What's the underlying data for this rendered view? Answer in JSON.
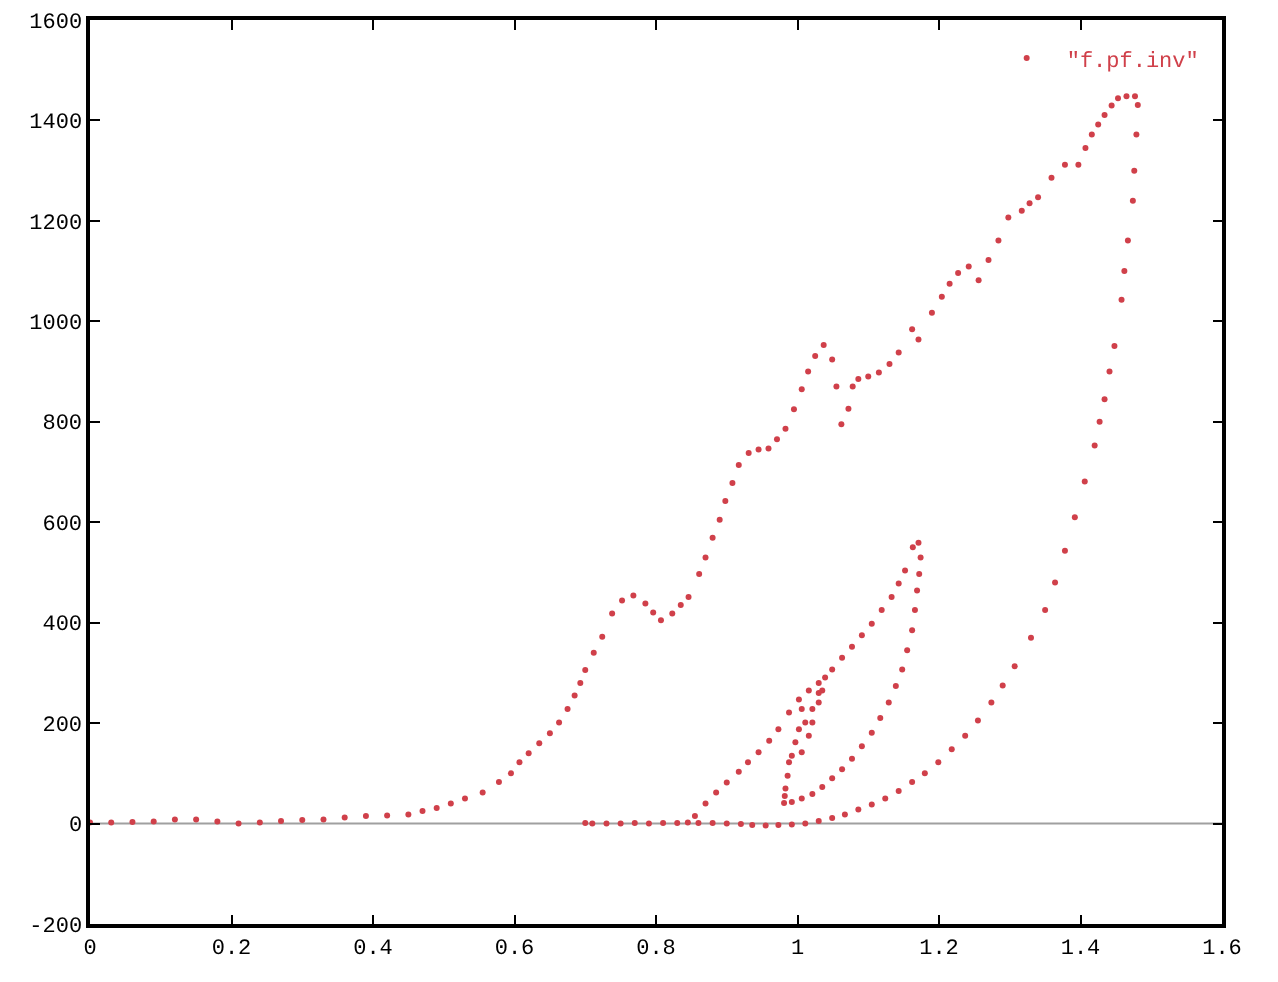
{
  "chart_data": {
    "type": "scatter",
    "x": [
      0,
      0.03,
      0.06,
      0.09,
      0.12,
      0.15,
      0.18,
      0.21,
      0.24,
      0.27,
      0.3,
      0.33,
      0.36,
      0.39,
      0.42,
      0.45,
      0.47,
      0.49,
      0.51,
      0.53,
      0.555,
      0.578,
      0.595,
      0.607,
      0.62,
      0.635,
      0.65,
      0.663,
      0.675,
      0.685,
      0.693,
      0.7,
      0.712,
      0.724,
      0.738,
      0.752,
      0.768,
      0.785,
      0.796,
      0.807,
      0.823,
      0.835,
      0.846,
      0.861,
      0.87,
      0.88,
      0.89,
      0.898,
      0.908,
      0.917,
      0.931,
      0.945,
      0.959,
      0.971,
      0.983,
      0.995,
      1.006,
      1.015,
      1.025,
      1.037,
      1.049,
      1.055,
      1.062,
      1.072,
      1.078,
      1.086,
      1.1,
      1.115,
      1.13,
      1.143,
      1.162,
      1.171,
      1.19,
      1.204,
      1.215,
      1.227,
      1.242,
      1.256,
      1.27,
      1.284,
      1.298,
      1.317,
      1.328,
      1.34,
      1.359,
      1.378,
      1.397,
      1.407,
      1.416,
      1.425,
      1.434,
      1.444,
      1.453,
      1.465,
      1.477,
      1.481,
      1.479,
      1.476,
      1.474,
      1.467,
      1.462,
      1.458,
      1.448,
      1.441,
      1.434,
      1.427,
      1.42,
      1.406,
      1.392,
      1.378,
      1.364,
      1.35,
      1.33,
      1.307,
      1.29,
      1.274,
      1.255,
      1.237,
      1.218,
      1.199,
      1.18,
      1.162,
      1.143,
      1.124,
      1.105,
      1.086,
      1.067,
      1.049,
      1.03,
      1.011,
      0.992,
      0.973,
      0.955,
      0.936,
      0.92,
      0.9,
      0.88,
      0.86,
      0.845,
      0.83,
      0.81,
      0.79,
      0.77,
      0.75,
      0.73,
      0.71,
      0.7,
      0.855,
      0.87,
      0.885,
      0.9,
      0.917,
      0.93,
      0.945,
      0.96,
      0.973,
      0.988,
      1.002,
      1.016,
      1.03,
      1.049,
      1.063,
      1.077,
      1.091,
      1.105,
      1.119,
      1.133,
      1.143,
      1.152,
      1.163,
      1.171,
      1.174,
      1.172,
      1.169,
      1.166,
      1.162,
      1.155,
      1.148,
      1.139,
      1.129,
      1.117,
      1.105,
      1.091,
      1.077,
      1.063,
      1.049,
      1.035,
      1.021,
      1.006,
      0.992,
      0.981,
      0.982,
      0.983,
      0.986,
      0.988,
      0.992,
      0.997,
      1.002,
      1.006,
      1.006,
      1.011,
      1.016,
      1.021,
      1.021,
      1.03,
      1.03,
      1.039,
      1.035
    ],
    "series": [
      {
        "name": "\"f.pf.inv\"",
        "color": "#d0404a",
        "values": [
          2,
          2,
          3,
          4,
          8,
          8,
          4,
          0,
          2,
          5,
          7,
          8,
          12,
          15,
          16,
          18,
          25,
          31,
          40,
          50,
          62,
          83,
          100,
          122,
          140,
          160,
          180,
          201,
          228,
          255,
          280,
          306,
          340,
          372,
          418,
          444,
          454,
          438,
          420,
          405,
          418,
          435,
          451,
          497,
          530,
          569,
          605,
          642,
          678,
          714,
          738,
          745,
          747,
          765,
          786,
          825,
          865,
          900,
          931,
          953,
          924,
          870,
          795,
          826,
          870,
          885,
          890,
          898,
          915,
          938,
          984,
          964,
          1017,
          1049,
          1075,
          1096,
          1109,
          1082,
          1122,
          1161,
          1207,
          1220,
          1235,
          1247,
          1286,
          1312,
          1312,
          1345,
          1372,
          1392,
          1411,
          1430,
          1444,
          1448,
          1448,
          1431,
          1372,
          1300,
          1240,
          1161,
          1100,
          1043,
          951,
          900,
          845,
          800,
          753,
          681,
          610,
          543,
          480,
          425,
          370,
          313,
          275,
          241,
          205,
          175,
          148,
          122,
          100,
          83,
          65,
          50,
          38,
          28,
          18,
          11,
          5,
          0,
          -2,
          -3,
          -4,
          -3,
          -1,
          0,
          1,
          1,
          2,
          1,
          1,
          0,
          1,
          0,
          0,
          0,
          1,
          15,
          40,
          62,
          82,
          103,
          122,
          142,
          165,
          188,
          221,
          247,
          265,
          280,
          307,
          330,
          352,
          375,
          398,
          425,
          451,
          478,
          504,
          550,
          559,
          530,
          497,
          464,
          425,
          385,
          345,
          307,
          274,
          241,
          210,
          181,
          154,
          129,
          108,
          90,
          73,
          59,
          50,
          43,
          41,
          55,
          70,
          95,
          122,
          135,
          162,
          188,
          228,
          142,
          201,
          175,
          228,
          201,
          260,
          241,
          291,
          265
        ]
      }
    ],
    "xlim": [
      0,
      1.6
    ],
    "ylim": [
      -200,
      1600
    ],
    "xticks": [
      0,
      0.2,
      0.4,
      0.6,
      0.8,
      1,
      1.2,
      1.4,
      1.6
    ],
    "yticks": [
      -200,
      0,
      200,
      400,
      600,
      800,
      1000,
      1200,
      1400,
      1600
    ],
    "ref_lines": [
      {
        "axis": "y",
        "value": 0,
        "color": "#a0a0a0"
      }
    ],
    "legend": "top right",
    "marker": "circle"
  }
}
